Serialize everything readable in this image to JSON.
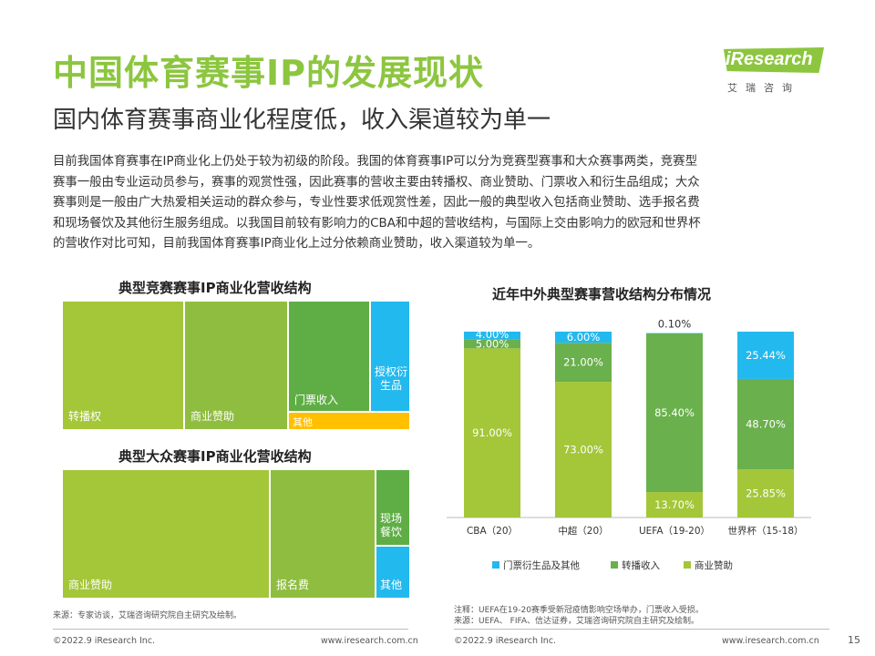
{
  "header": {
    "title": "中国体育赛事IP的发展现状",
    "subtitle": "国内体育赛事商业化程度低，收入渠道较为单一"
  },
  "logo": {
    "brand": "iResearch",
    "sub": "艾瑞咨询"
  },
  "paragraph": [
    "目前我国体育赛事在IP商业化上仍处于较为初级的阶段。我国的体育赛事IP可以分为竞赛型赛事和大众赛事两类，竞赛型",
    "赛事一般由专业运动员参与，赛事的观赏性强，因此赛事的营收主要由转播权、商业赞助、门票收入和衍生品组成；大众",
    "赛事则是一般由广大热爱相关运动的群众参与，专业性要求低观赏性差，因此一般的典型收入包括商业赞助、选手报名费",
    "和现场餐饮及其他衍生服务组成。以我国目前较有影响力的CBA和中超的营收结构，与国际上交由影响力的欧冠和世界杯",
    "的营收作对比可知，目前我国体育赛事IP商业化上过分依赖商业赞助，收入渠道较为单一。"
  ],
  "treemap1": {
    "title": "典型竞赛赛事IP商业化营收结构",
    "cells": [
      {
        "label": "转播权",
        "color": "#a4c639"
      },
      {
        "label": "商业赞助",
        "color": "#8fbd3f"
      },
      {
        "label": "门票收入",
        "color": "#5fae45"
      },
      {
        "label": "授权衍生品",
        "color": "#22b9ee"
      },
      {
        "label": "其他",
        "color": "#ffc000"
      }
    ]
  },
  "treemap2": {
    "title": "典型大众赛事IP商业化营收结构",
    "cells": [
      {
        "label": "商业赞助",
        "color": "#a4c639"
      },
      {
        "label": "报名费",
        "color": "#8fbd3f"
      },
      {
        "label": "现场餐饮",
        "color": "#5fae45"
      },
      {
        "label": "其他",
        "color": "#22b9ee"
      }
    ]
  },
  "chart_data": {
    "type": "bar",
    "title": "近年中外典型赛事营收结构分布情况",
    "categories": [
      "CBA（20）",
      "中超（20）",
      "UEFA（19-20）",
      "世界杯（15-18）"
    ],
    "series": [
      {
        "name": "商业赞助",
        "color": "#a4c639",
        "values": [
          91.0,
          73.0,
          13.7,
          25.85
        ],
        "labels": [
          "91.00%",
          "73.00%",
          "13.70%",
          "25.85%"
        ]
      },
      {
        "name": "转播收入",
        "color": "#6ab04c",
        "values": [
          5.0,
          21.0,
          85.4,
          48.7
        ],
        "labels": [
          "5.00%",
          "21.00%",
          "85.40%",
          "48.70%"
        ]
      },
      {
        "name": "门票衍生品及其他",
        "color": "#22b9ee",
        "values": [
          4.0,
          6.0,
          0.1,
          25.44
        ],
        "labels": [
          "4.00%",
          "6.00%",
          "0.10%",
          "25.44%"
        ]
      }
    ],
    "legend_order": [
      "门票衍生品及其他",
      "转播收入",
      "商业赞助"
    ],
    "ylim": [
      0,
      100
    ],
    "stacked": true,
    "legend": "bottom"
  },
  "notes": {
    "left_source": "来源：专家访谈，艾瑞咨询研究院自主研究及绘制。",
    "right_note": "注释：UEFA在19-20赛季受新冠疫情影响空场举办，门票收入受损。",
    "right_source": "来源：UEFA、 FIFA、信达证券，艾瑞咨询研究院自主研究及绘制。"
  },
  "footer": {
    "left_copy": "©2022.9 iResearch Inc.",
    "left_url": "www.iresearch.com.cn",
    "right_copy": "©2022.9 iResearch Inc.",
    "right_url": "www.iresearch.com.cn",
    "page": "15"
  }
}
